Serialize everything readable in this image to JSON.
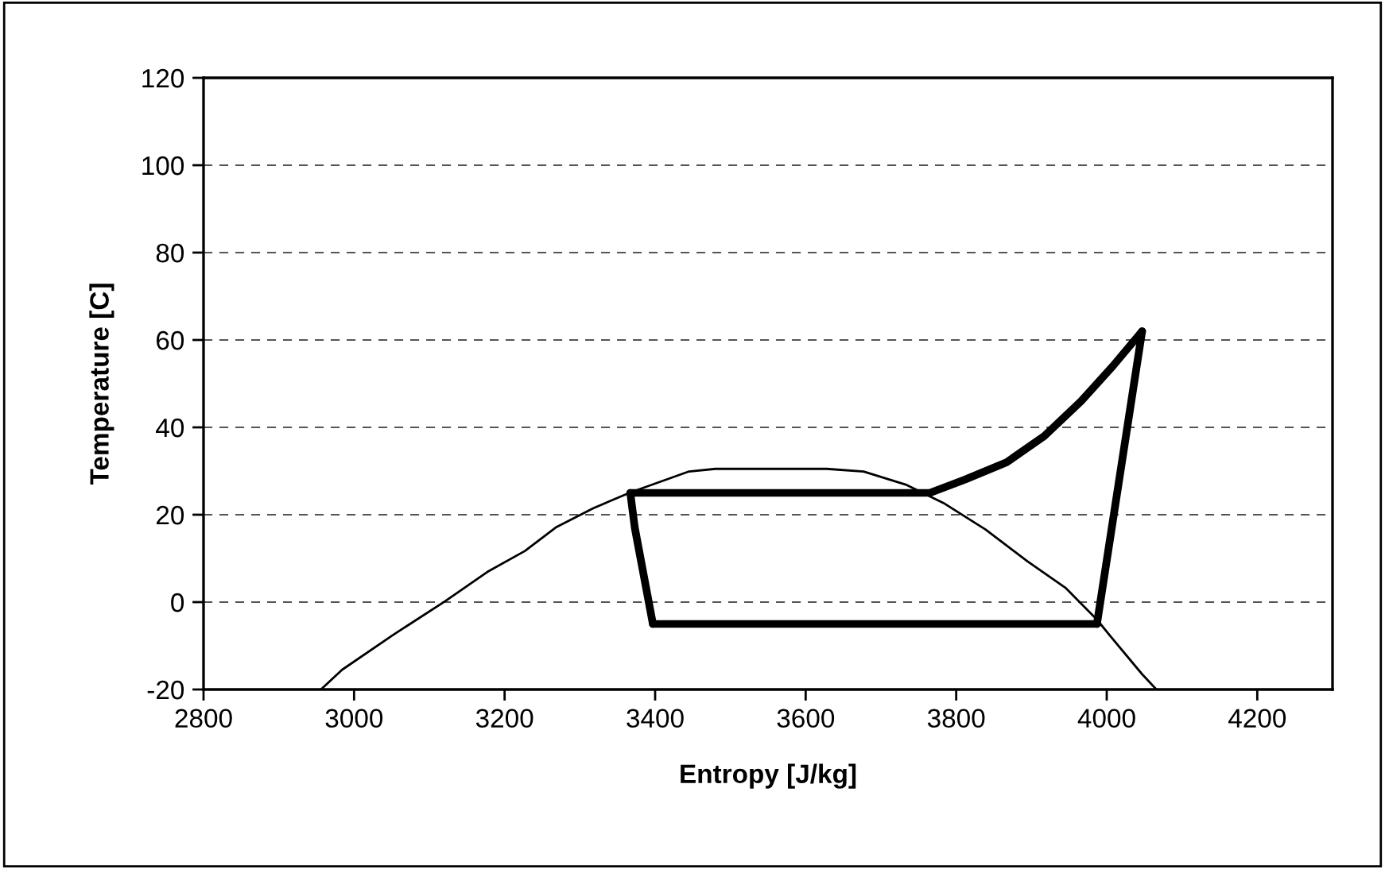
{
  "chart_data": {
    "type": "line",
    "xlabel": "Entropy [J/kg]",
    "ylabel": "Temperature [C]",
    "xlim": [
      2800,
      4300
    ],
    "xticks": [
      2800,
      3000,
      3200,
      3400,
      3600,
      3800,
      4000,
      4200
    ],
    "ylim": [
      -20,
      120
    ],
    "yticks": [
      -20,
      0,
      20,
      40,
      60,
      80,
      100,
      120
    ],
    "grid": "y",
    "legend": false,
    "marker": "none",
    "line_style": "solid",
    "series": [
      {
        "color": "#000000",
        "x": [
          2956,
          2984,
          3051,
          3121,
          3177,
          3227,
          3269,
          3318,
          3367,
          3445,
          3480,
          3628,
          3677,
          3733,
          3783,
          3839,
          3895,
          3945,
          3987,
          4004,
          4047,
          4066
        ],
        "values": [
          -20,
          -15.5,
          -7.6,
          0.2,
          6.9,
          11.7,
          17.2,
          21.5,
          25.1,
          29.9,
          30.5,
          30.5,
          29.9,
          26.9,
          22.7,
          16.6,
          9.3,
          3.3,
          -4.0,
          -7.6,
          -16.5,
          -20
        ]
      },
      {
        "color": "#000000",
        "x": [
          3367,
          3373,
          3397
        ],
        "values": [
          25,
          17,
          -5
        ]
      },
      {
        "color": "#000000",
        "x": [
          3397,
          3987
        ],
        "values": [
          -5,
          -5
        ]
      },
      {
        "color": "#000000",
        "x": [
          3987,
          4047
        ],
        "values": [
          -5,
          62
        ]
      },
      {
        "color": "#000000",
        "x": [
          3367,
          3765,
          3811,
          3867,
          3917,
          3966,
          4008,
          4047
        ],
        "values": [
          25,
          25,
          28,
          32,
          38,
          46,
          54,
          62
        ]
      }
    ]
  }
}
